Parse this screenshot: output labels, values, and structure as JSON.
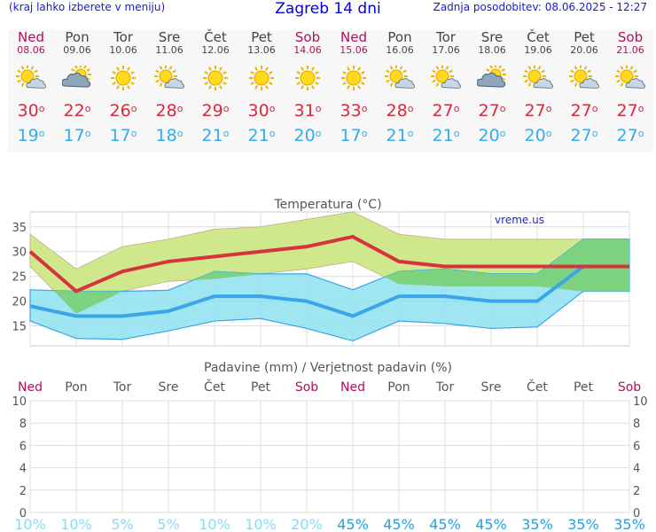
{
  "header": {
    "left": "(kraj lahko izberete v meniju)",
    "title": "Zagreb 14 dni",
    "right": "Zadnja posodobitev: 08.06.2025 - 12:27"
  },
  "days": [
    {
      "name": "Ned",
      "date": "08.06",
      "icon": "sun-cloud-icon",
      "max": "30",
      "min": "19",
      "red": true
    },
    {
      "name": "Pon",
      "date": "09.06",
      "icon": "cloud-sun-icon",
      "max": "22",
      "min": "17",
      "red": false
    },
    {
      "name": "Tor",
      "date": "10.06",
      "icon": "sun-icon",
      "max": "26",
      "min": "17",
      "red": false
    },
    {
      "name": "Sre",
      "date": "11.06",
      "icon": "sun-cloud-icon",
      "max": "28",
      "min": "18",
      "red": false
    },
    {
      "name": "Čet",
      "date": "12.06",
      "icon": "sun-icon",
      "max": "29",
      "min": "21",
      "red": false
    },
    {
      "name": "Pet",
      "date": "13.06",
      "icon": "sun-icon",
      "max": "30",
      "min": "21",
      "red": false
    },
    {
      "name": "Sob",
      "date": "14.06",
      "icon": "sun-icon",
      "max": "31",
      "min": "20",
      "red": true
    },
    {
      "name": "Ned",
      "date": "15.06",
      "icon": "sun-icon",
      "max": "33",
      "min": "17",
      "red": true
    },
    {
      "name": "Pon",
      "date": "16.06",
      "icon": "sun-cloud-icon",
      "max": "28",
      "min": "21",
      "red": false
    },
    {
      "name": "Tor",
      "date": "17.06",
      "icon": "sun-cloud-icon",
      "max": "27",
      "min": "21",
      "red": false
    },
    {
      "name": "Sre",
      "date": "18.06",
      "icon": "cloud-sun-icon",
      "max": "27",
      "min": "20",
      "red": false
    },
    {
      "name": "Čet",
      "date": "19.06",
      "icon": "sun-cloud-icon",
      "max": "27",
      "min": "20",
      "red": false
    },
    {
      "name": "Pet",
      "date": "20.06",
      "icon": "sun-cloud-icon",
      "max": "27",
      "min": "27",
      "red": false
    },
    {
      "name": "Sob",
      "date": "21.06",
      "icon": "sun-cloud-icon",
      "max": "27",
      "min": "27",
      "red": true
    }
  ],
  "colors": {
    "max_line": "#d8323c",
    "min_line": "#3aa6ea",
    "max_band": "#cfe88c",
    "min_band": "#8fe0f0",
    "overlap": "#7cd27e",
    "red_day": "#b0105a",
    "prob_light": "#8fd8f4",
    "prob_dark": "#2aa0e0"
  },
  "chart_data": [
    {
      "type": "line",
      "title": "Temperatura (°C)",
      "watermark": "vreme.us",
      "ylim": [
        11,
        38
      ],
      "yticks": [
        "15",
        "20",
        "25",
        "30",
        "35"
      ],
      "ytick_values": [
        15,
        20,
        25,
        30,
        35
      ],
      "x": [
        "08.06",
        "09.06",
        "10.06",
        "11.06",
        "12.06",
        "13.06",
        "14.06",
        "15.06",
        "16.06",
        "17.06",
        "18.06",
        "19.06",
        "20.06",
        "21.06"
      ],
      "series": [
        {
          "values": [
            30,
            22,
            26,
            28,
            29,
            30,
            31,
            33,
            28,
            27,
            27,
            27,
            27,
            27
          ]
        },
        {
          "values": [
            19,
            17,
            17,
            18,
            21,
            21,
            20,
            17,
            21,
            21,
            20,
            20,
            27,
            27
          ]
        }
      ],
      "bands": [
        {
          "lower": [
            27,
            17.5,
            22,
            24,
            24.5,
            25.5,
            26.5,
            28,
            23.5,
            23,
            23,
            23,
            22,
            22
          ],
          "upper": [
            33.5,
            26.5,
            31,
            32.5,
            34.5,
            35,
            36.5,
            38,
            33.5,
            32.5,
            32.5,
            32.5,
            32.5,
            32.5
          ]
        },
        {
          "lower": [
            16,
            12.5,
            12.3,
            14,
            16,
            16.5,
            14.5,
            12,
            16,
            15.5,
            14.5,
            14.8,
            22,
            22
          ],
          "upper": [
            22.3,
            22,
            22,
            22.2,
            26,
            25.5,
            25.5,
            22.3,
            26,
            26.5,
            25.5,
            25.5,
            32.5,
            32.5
          ]
        }
      ]
    },
    {
      "type": "bar",
      "title": "Padavine (mm) / Verjetnost padavin (%)",
      "categories": [
        "Ned",
        "Pon",
        "Tor",
        "Sre",
        "Čet",
        "Pet",
        "Sob",
        "Ned",
        "Pon",
        "Tor",
        "Sre",
        "Čet",
        "Pet",
        "Sob"
      ],
      "red_categories": [
        true,
        false,
        false,
        false,
        false,
        false,
        true,
        true,
        false,
        false,
        false,
        false,
        false,
        true
      ],
      "values": [
        0,
        0,
        0,
        0,
        0,
        0,
        0,
        0,
        0,
        0,
        0,
        0,
        0,
        0
      ],
      "ylim": [
        0,
        10
      ],
      "yticks": [
        "0",
        "2",
        "4",
        "6",
        "8",
        "10"
      ],
      "ytick_values": [
        0,
        2,
        4,
        6,
        8,
        10
      ],
      "probabilities": [
        "10%",
        "10%",
        "5%",
        "5%",
        "10%",
        "10%",
        "20%",
        "45%",
        "45%",
        "45%",
        "45%",
        "35%",
        "35%",
        "35%"
      ],
      "prob_dark": [
        false,
        false,
        false,
        false,
        false,
        false,
        false,
        true,
        true,
        true,
        true,
        true,
        true,
        true
      ]
    }
  ]
}
